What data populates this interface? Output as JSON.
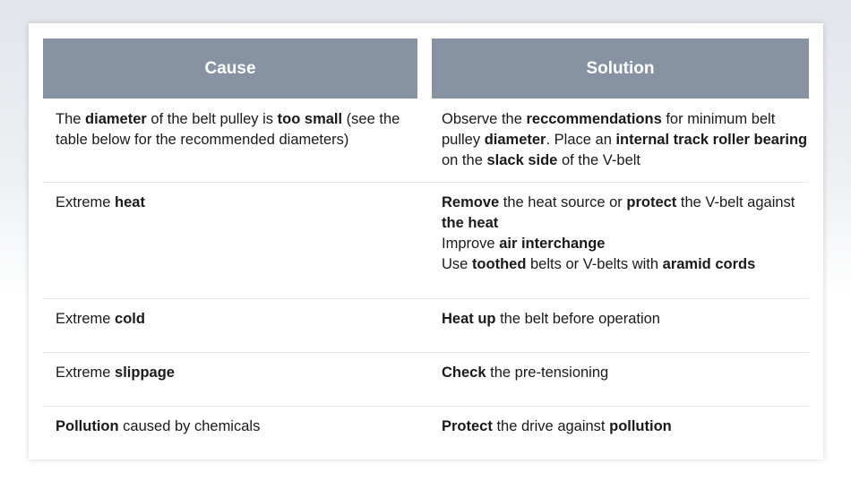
{
  "table": {
    "headers": {
      "cause": "Cause",
      "solution": "Solution"
    },
    "rows": [
      {
        "cause": [
          [
            {
              "t": "The "
            },
            {
              "t": "diameter",
              "b": true
            },
            {
              "t": " of the belt pulley is "
            },
            {
              "t": "too small",
              "b": true
            },
            {
              "t": " (see the table below for the recommended diameters)"
            }
          ]
        ],
        "solution": [
          [
            {
              "t": "Observe the "
            },
            {
              "t": "reccommendations",
              "b": true
            },
            {
              "t": " for minimum belt pulley "
            },
            {
              "t": "diameter",
              "b": true
            },
            {
              "t": ". Place an "
            },
            {
              "t": "internal track roller bearing",
              "b": true
            },
            {
              "t": " on the "
            },
            {
              "t": "slack side",
              "b": true
            },
            {
              "t": " of the V-belt"
            }
          ]
        ]
      },
      {
        "cause": [
          [
            {
              "t": "Extreme "
            },
            {
              "t": "heat",
              "b": true
            }
          ]
        ],
        "solution": [
          [
            {
              "t": "Remove",
              "b": true
            },
            {
              "t": " the heat source or "
            },
            {
              "t": "protect",
              "b": true
            },
            {
              "t": " the V-belt against "
            },
            {
              "t": "the heat",
              "b": true
            }
          ],
          [
            {
              "t": "Improve "
            },
            {
              "t": "air interchange",
              "b": true
            }
          ],
          [
            {
              "t": "Use "
            },
            {
              "t": "toothed",
              "b": true
            },
            {
              "t": " belts or V-belts with "
            },
            {
              "t": "aramid cords",
              "b": true
            }
          ]
        ]
      },
      {
        "cause": [
          [
            {
              "t": "Extreme "
            },
            {
              "t": "cold",
              "b": true
            }
          ]
        ],
        "solution": [
          [
            {
              "t": "Heat up",
              "b": true
            },
            {
              "t": " the belt before operation"
            }
          ]
        ]
      },
      {
        "cause": [
          [
            {
              "t": "Extreme "
            },
            {
              "t": "slippage",
              "b": true
            }
          ]
        ],
        "solution": [
          [
            {
              "t": "Check",
              "b": true
            },
            {
              "t": " the pre-tensioning"
            }
          ]
        ]
      },
      {
        "cause": [
          [
            {
              "t": "Pollution",
              "b": true
            },
            {
              "t": " caused by chemicals"
            }
          ]
        ],
        "solution": [
          [
            {
              "t": "Protect",
              "b": true
            },
            {
              "t": " the drive against "
            },
            {
              "t": "pollution",
              "b": true
            }
          ]
        ]
      }
    ]
  }
}
